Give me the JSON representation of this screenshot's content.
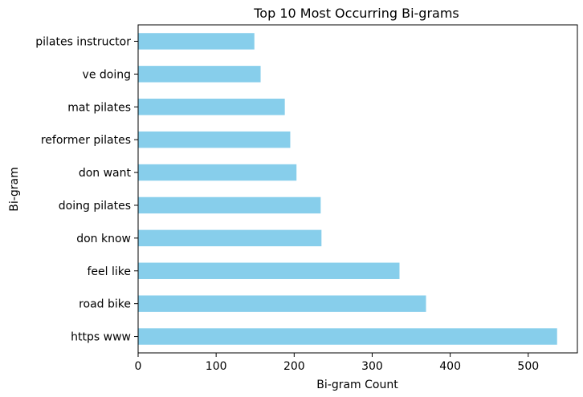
{
  "chart_data": {
    "type": "bar",
    "orientation": "horizontal",
    "title": "Top 10 Most Occurring Bi-grams",
    "xlabel": "Bi-gram Count",
    "ylabel": "Bi-gram",
    "categories": [
      "https www",
      "road bike",
      "feel like",
      "don know",
      "doing pilates",
      "don want",
      "reformer pilates",
      "mat pilates",
      "ve doing",
      "pilates instructor"
    ],
    "values": [
      537,
      369,
      335,
      235,
      234,
      203,
      195,
      188,
      157,
      149
    ],
    "xlim": [
      0,
      563
    ],
    "xticks": [
      "0",
      "100",
      "200",
      "300",
      "400",
      "500"
    ],
    "grid": false,
    "bar_color": "#87ceeb"
  }
}
